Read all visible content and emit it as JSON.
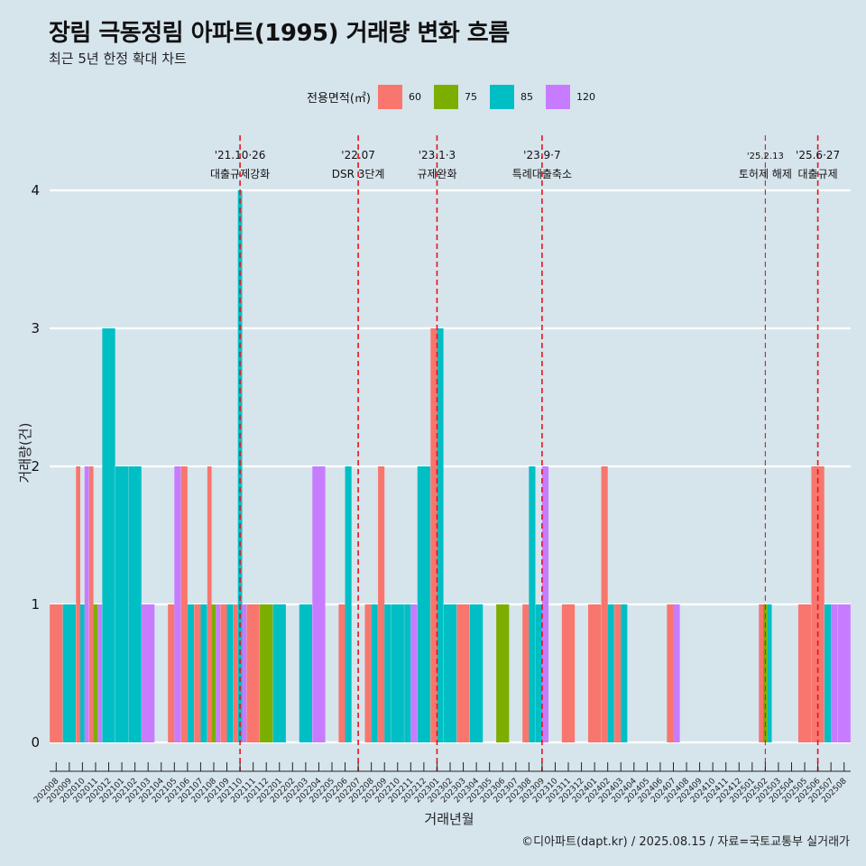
{
  "title": "장림 극동정림 아파트(1995) 거래량 변화 흐름",
  "subtitle": "최근 5년 한정 확대 차트",
  "footer": "©디아파트(dapt.kr) / 2025.08.15 / 자료=국토교통부 실거래가",
  "legend": {
    "title": "전용면적(㎡)",
    "items": [
      {
        "label": "60",
        "color": "#f8766d"
      },
      {
        "label": "75",
        "color": "#7cae00"
      },
      {
        "label": "85",
        "color": "#00bfc4"
      },
      {
        "label": "120",
        "color": "#c77cff"
      }
    ]
  },
  "chart_data": {
    "type": "bar",
    "xlabel": "거래년월",
    "ylabel": "거래량(건)",
    "ylim": [
      0,
      4
    ],
    "yticks": [
      0,
      1,
      2,
      3,
      4
    ],
    "categories": [
      "202008",
      "202009",
      "202010",
      "202011",
      "202012",
      "202101",
      "202102",
      "202103",
      "202104",
      "202105",
      "202106",
      "202107",
      "202108",
      "202109",
      "202110",
      "202111",
      "202112",
      "202201",
      "202202",
      "202203",
      "202204",
      "202205",
      "202206",
      "202207",
      "202208",
      "202209",
      "202210",
      "202211",
      "202212",
      "202301",
      "202302",
      "202303",
      "202304",
      "202305",
      "202306",
      "202307",
      "202308",
      "202309",
      "202310",
      "202311",
      "202312",
      "202401",
      "202402",
      "202403",
      "202404",
      "202405",
      "202406",
      "202407",
      "202408",
      "202409",
      "202410",
      "202411",
      "202412",
      "202501",
      "202502",
      "202503",
      "202504",
      "202505",
      "202506",
      "202507",
      "202508"
    ],
    "series": [
      {
        "name": "60",
        "values": [
          1,
          0,
          2,
          2,
          0,
          0,
          0,
          0,
          0,
          1,
          2,
          1,
          2,
          1,
          1,
          1,
          0,
          0,
          0,
          0,
          0,
          0,
          1,
          0,
          1,
          2,
          0,
          0,
          0,
          3,
          0,
          1,
          0,
          0,
          0,
          0,
          1,
          0,
          0,
          1,
          0,
          1,
          2,
          1,
          0,
          0,
          0,
          1,
          0,
          0,
          0,
          0,
          0,
          0,
          1,
          0,
          0,
          1,
          2,
          0,
          0
        ]
      },
      {
        "name": "75",
        "values": [
          0,
          0,
          0,
          1,
          0,
          0,
          0,
          0,
          0,
          0,
          0,
          0,
          1,
          0,
          0,
          0,
          1,
          0,
          0,
          0,
          0,
          0,
          0,
          0,
          0,
          0,
          0,
          0,
          0,
          0,
          0,
          0,
          0,
          0,
          1,
          0,
          0,
          0,
          0,
          0,
          0,
          0,
          0,
          0,
          0,
          0,
          0,
          0,
          0,
          0,
          0,
          0,
          0,
          0,
          1,
          0,
          0,
          0,
          0,
          0,
          0
        ]
      },
      {
        "name": "85",
        "values": [
          0,
          1,
          1,
          0,
          3,
          2,
          2,
          0,
          0,
          0,
          1,
          1,
          0,
          1,
          4,
          0,
          0,
          1,
          0,
          1,
          0,
          0,
          2,
          0,
          1,
          1,
          1,
          1,
          2,
          3,
          1,
          0,
          1,
          0,
          0,
          0,
          2,
          1,
          0,
          0,
          0,
          0,
          1,
          1,
          0,
          0,
          0,
          0,
          0,
          0,
          0,
          0,
          0,
          0,
          1,
          0,
          0,
          0,
          0,
          1,
          0
        ]
      },
      {
        "name": "120",
        "values": [
          0,
          0,
          2,
          1,
          0,
          0,
          0,
          1,
          0,
          2,
          0,
          0,
          1,
          0,
          1,
          0,
          0,
          0,
          0,
          0,
          2,
          0,
          0,
          0,
          0,
          0,
          0,
          1,
          0,
          0,
          0,
          0,
          0,
          0,
          0,
          0,
          0,
          2,
          0,
          0,
          0,
          0,
          0,
          0,
          0,
          0,
          0,
          1,
          0,
          0,
          0,
          0,
          0,
          0,
          0,
          0,
          0,
          0,
          0,
          1,
          1
        ]
      }
    ],
    "annotations": [
      {
        "x": "202110",
        "date": "'21.10·26",
        "label": "대출규제강화"
      },
      {
        "x": "202207",
        "date": "'22.07",
        "label": "DSR 3단계"
      },
      {
        "x": "202301",
        "date": "'23.1·3",
        "label": "규제완화"
      },
      {
        "x": "202309",
        "date": "'23.9·7",
        "label": "특례대출축소"
      },
      {
        "x": "202502",
        "date": "'25.2.13",
        "label": "토허제 해제"
      },
      {
        "x": "202506",
        "date": "'25.6·27",
        "label": "대출규제"
      }
    ]
  }
}
